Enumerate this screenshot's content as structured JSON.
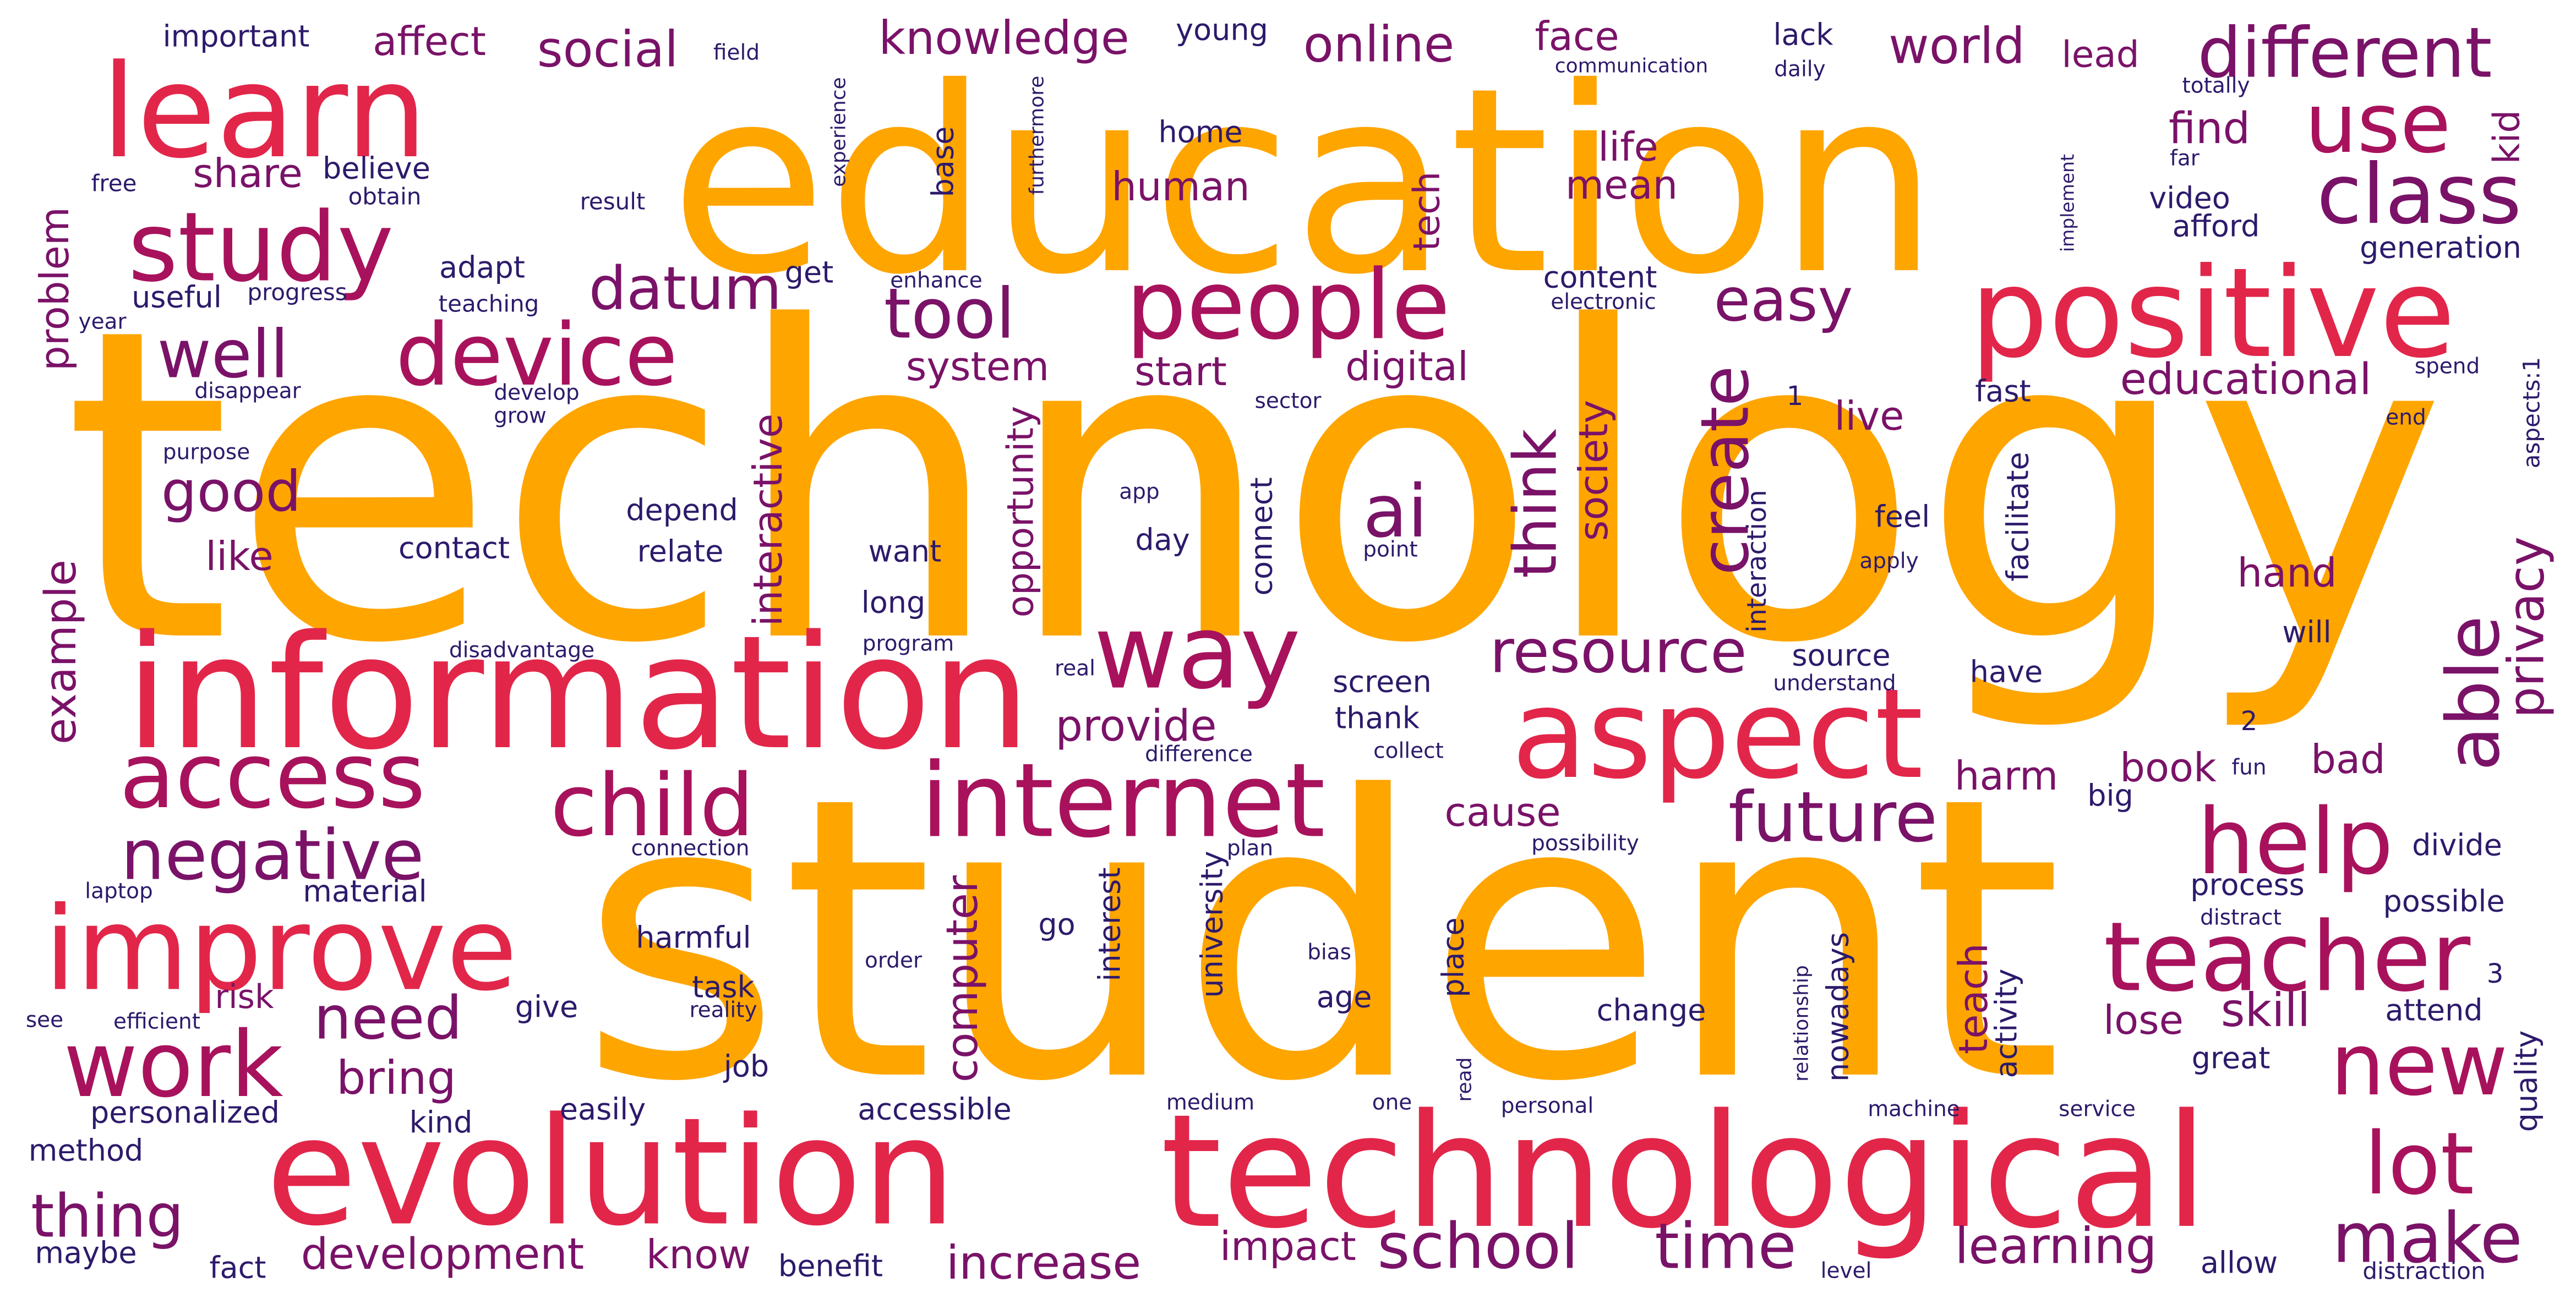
{
  "palette": {
    "orange": "#FFA500",
    "crimson": "#E2264A",
    "magenta": "#A8125C",
    "purple": "#7A1268",
    "indigo": "#2D1A6B"
  },
  "words": [
    {
      "text": "technology",
      "color": "orange"
    },
    {
      "text": "student",
      "color": "orange"
    },
    {
      "text": "education",
      "color": "orange"
    },
    {
      "text": "technological",
      "color": "crimson"
    },
    {
      "text": "information",
      "color": "crimson"
    },
    {
      "text": "evolution",
      "color": "crimson"
    },
    {
      "text": "positive",
      "color": "crimson"
    },
    {
      "text": "aspect",
      "color": "crimson"
    },
    {
      "text": "learn",
      "color": "crimson"
    },
    {
      "text": "improve",
      "color": "crimson"
    },
    {
      "text": "internet",
      "color": "magenta"
    },
    {
      "text": "people",
      "color": "magenta"
    },
    {
      "text": "teacher",
      "color": "magenta"
    },
    {
      "text": "access",
      "color": "magenta"
    },
    {
      "text": "study",
      "color": "magenta"
    },
    {
      "text": "device",
      "color": "magenta"
    },
    {
      "text": "child",
      "color": "magenta"
    },
    {
      "text": "way",
      "color": "magenta"
    },
    {
      "text": "help",
      "color": "magenta"
    },
    {
      "text": "work",
      "color": "magenta"
    },
    {
      "text": "different",
      "color": "purple"
    },
    {
      "text": "class",
      "color": "purple"
    },
    {
      "text": "use",
      "color": "magenta"
    },
    {
      "text": "new",
      "color": "magenta"
    },
    {
      "text": "lot",
      "color": "magenta"
    },
    {
      "text": "negative",
      "color": "purple"
    },
    {
      "text": "future",
      "color": "purple"
    },
    {
      "text": "make",
      "color": "purple"
    },
    {
      "text": "tool",
      "color": "purple"
    },
    {
      "text": "well",
      "color": "purple"
    },
    {
      "text": "ai",
      "color": "purple"
    },
    {
      "text": "able",
      "color": "purple"
    },
    {
      "text": "school",
      "color": "purple"
    },
    {
      "text": "time",
      "color": "purple"
    },
    {
      "text": "need",
      "color": "purple"
    },
    {
      "text": "thing",
      "color": "purple"
    },
    {
      "text": "resource",
      "color": "purple"
    },
    {
      "text": "easy",
      "color": "purple"
    },
    {
      "text": "datum",
      "color": "purple"
    },
    {
      "text": "create",
      "color": "purple"
    },
    {
      "text": "think",
      "color": "purple"
    },
    {
      "text": "good",
      "color": "purple"
    },
    {
      "text": "knowledge",
      "color": "purple"
    },
    {
      "text": "online",
      "color": "purple"
    },
    {
      "text": "social",
      "color": "purple"
    },
    {
      "text": "world",
      "color": "purple"
    },
    {
      "text": "privacy",
      "color": "purple"
    },
    {
      "text": "learning",
      "color": "purple"
    },
    {
      "text": "increase",
      "color": "purple"
    },
    {
      "text": "bring",
      "color": "purple"
    },
    {
      "text": "development",
      "color": "purple"
    },
    {
      "text": "educational",
      "color": "purple"
    },
    {
      "text": "provide",
      "color": "purple"
    },
    {
      "text": "computer",
      "color": "purple"
    },
    {
      "text": "example",
      "color": "purple"
    },
    {
      "text": "interactive",
      "color": "purple"
    },
    {
      "text": "society",
      "color": "purple"
    },
    {
      "text": "digital",
      "color": "purple"
    },
    {
      "text": "face",
      "color": "purple"
    },
    {
      "text": "affect",
      "color": "purple"
    },
    {
      "text": "problem",
      "color": "purple"
    },
    {
      "text": "human",
      "color": "purple"
    },
    {
      "text": "find",
      "color": "purple"
    },
    {
      "text": "life",
      "color": "purple"
    },
    {
      "text": "mean",
      "color": "purple"
    },
    {
      "text": "system",
      "color": "purple"
    },
    {
      "text": "start",
      "color": "purple"
    },
    {
      "text": "opportunity",
      "color": "purple"
    },
    {
      "text": "harm",
      "color": "purple"
    },
    {
      "text": "bad",
      "color": "purple"
    },
    {
      "text": "book",
      "color": "purple"
    },
    {
      "text": "hand",
      "color": "purple"
    },
    {
      "text": "share",
      "color": "purple"
    },
    {
      "text": "like",
      "color": "purple"
    },
    {
      "text": "live",
      "color": "purple"
    },
    {
      "text": "lose",
      "color": "purple"
    },
    {
      "text": "skill",
      "color": "purple"
    },
    {
      "text": "teach",
      "color": "purple"
    },
    {
      "text": "impact",
      "color": "purple"
    },
    {
      "text": "know",
      "color": "purple"
    },
    {
      "text": "cause",
      "color": "purple"
    },
    {
      "text": "kid",
      "color": "purple"
    },
    {
      "text": "lead",
      "color": "purple"
    },
    {
      "text": "tech",
      "color": "purple"
    },
    {
      "text": "risk",
      "color": "purple"
    },
    {
      "text": "important",
      "color": "indigo"
    },
    {
      "text": "young",
      "color": "indigo"
    },
    {
      "text": "lack",
      "color": "indigo"
    },
    {
      "text": "field",
      "color": "indigo"
    },
    {
      "text": "communication",
      "color": "indigo"
    },
    {
      "text": "daily",
      "color": "indigo"
    },
    {
      "text": "totally",
      "color": "indigo"
    },
    {
      "text": "far",
      "color": "indigo"
    },
    {
      "text": "home",
      "color": "indigo"
    },
    {
      "text": "base",
      "color": "indigo"
    },
    {
      "text": "experience",
      "color": "indigo"
    },
    {
      "text": "free",
      "color": "indigo"
    },
    {
      "text": "believe",
      "color": "indigo"
    },
    {
      "text": "obtain",
      "color": "indigo"
    },
    {
      "text": "result",
      "color": "indigo"
    },
    {
      "text": "furthermore",
      "color": "indigo"
    },
    {
      "text": "implement",
      "color": "indigo"
    },
    {
      "text": "video",
      "color": "indigo"
    },
    {
      "text": "afford",
      "color": "indigo"
    },
    {
      "text": "adapt",
      "color": "indigo"
    },
    {
      "text": "get",
      "color": "indigo"
    },
    {
      "text": "enhance",
      "color": "indigo"
    },
    {
      "text": "content",
      "color": "indigo"
    },
    {
      "text": "electronic",
      "color": "indigo"
    },
    {
      "text": "generation",
      "color": "indigo"
    },
    {
      "text": "useful",
      "color": "indigo"
    },
    {
      "text": "progress",
      "color": "indigo"
    },
    {
      "text": "teaching",
      "color": "indigo"
    },
    {
      "text": "year",
      "color": "indigo"
    },
    {
      "text": "disappear",
      "color": "indigo"
    },
    {
      "text": "develop",
      "color": "indigo"
    },
    {
      "text": "grow",
      "color": "indigo"
    },
    {
      "text": "sector",
      "color": "indigo"
    },
    {
      "text": "1",
      "color": "indigo"
    },
    {
      "text": "fast",
      "color": "indigo"
    },
    {
      "text": "spend",
      "color": "indigo"
    },
    {
      "text": "end",
      "color": "indigo"
    },
    {
      "text": "aspects:1",
      "color": "indigo"
    },
    {
      "text": "purpose",
      "color": "indigo"
    },
    {
      "text": "app",
      "color": "indigo"
    },
    {
      "text": "contact",
      "color": "indigo"
    },
    {
      "text": "depend",
      "color": "indigo"
    },
    {
      "text": "relate",
      "color": "indigo"
    },
    {
      "text": "want",
      "color": "indigo"
    },
    {
      "text": "day",
      "color": "indigo"
    },
    {
      "text": "connect",
      "color": "indigo"
    },
    {
      "text": "point",
      "color": "indigo"
    },
    {
      "text": "feel",
      "color": "indigo"
    },
    {
      "text": "apply",
      "color": "indigo"
    },
    {
      "text": "interaction",
      "color": "indigo"
    },
    {
      "text": "facilitate",
      "color": "indigo"
    },
    {
      "text": "long",
      "color": "indigo"
    },
    {
      "text": "disadvantage",
      "color": "indigo"
    },
    {
      "text": "program",
      "color": "indigo"
    },
    {
      "text": "real",
      "color": "indigo"
    },
    {
      "text": "screen",
      "color": "indigo"
    },
    {
      "text": "thank",
      "color": "indigo"
    },
    {
      "text": "source",
      "color": "indigo"
    },
    {
      "text": "understand",
      "color": "indigo"
    },
    {
      "text": "have",
      "color": "indigo"
    },
    {
      "text": "will",
      "color": "indigo"
    },
    {
      "text": "2",
      "color": "indigo"
    },
    {
      "text": "difference",
      "color": "indigo"
    },
    {
      "text": "collect",
      "color": "indigo"
    },
    {
      "text": "fun",
      "color": "indigo"
    },
    {
      "text": "big",
      "color": "indigo"
    },
    {
      "text": "connection",
      "color": "indigo"
    },
    {
      "text": "plan",
      "color": "indigo"
    },
    {
      "text": "possibility",
      "color": "indigo"
    },
    {
      "text": "divide",
      "color": "indigo"
    },
    {
      "text": "laptop",
      "color": "indigo"
    },
    {
      "text": "material",
      "color": "indigo"
    },
    {
      "text": "process",
      "color": "indigo"
    },
    {
      "text": "distract",
      "color": "indigo"
    },
    {
      "text": "possible",
      "color": "indigo"
    },
    {
      "text": "harmful",
      "color": "indigo"
    },
    {
      "text": "go",
      "color": "indigo"
    },
    {
      "text": "order",
      "color": "indigo"
    },
    {
      "text": "bias",
      "color": "indigo"
    },
    {
      "text": "university",
      "color": "indigo"
    },
    {
      "text": "interest",
      "color": "indigo"
    },
    {
      "text": "place",
      "color": "indigo"
    },
    {
      "text": "nowadays",
      "color": "indigo"
    },
    {
      "text": "relationship",
      "color": "indigo"
    },
    {
      "text": "activity",
      "color": "indigo"
    },
    {
      "text": "3",
      "color": "indigo"
    },
    {
      "text": "attend",
      "color": "indigo"
    },
    {
      "text": "see",
      "color": "indigo"
    },
    {
      "text": "efficient",
      "color": "indigo"
    },
    {
      "text": "task",
      "color": "indigo"
    },
    {
      "text": "reality",
      "color": "indigo"
    },
    {
      "text": "give",
      "color": "indigo"
    },
    {
      "text": "age",
      "color": "indigo"
    },
    {
      "text": "change",
      "color": "indigo"
    },
    {
      "text": "great",
      "color": "indigo"
    },
    {
      "text": "quality",
      "color": "indigo"
    },
    {
      "text": "job",
      "color": "indigo"
    },
    {
      "text": "read",
      "color": "indigo"
    },
    {
      "text": "personalized",
      "color": "indigo"
    },
    {
      "text": "easily",
      "color": "indigo"
    },
    {
      "text": "accessible",
      "color": "indigo"
    },
    {
      "text": "medium",
      "color": "indigo"
    },
    {
      "text": "one",
      "color": "indigo"
    },
    {
      "text": "personal",
      "color": "indigo"
    },
    {
      "text": "machine",
      "color": "indigo"
    },
    {
      "text": "service",
      "color": "indigo"
    },
    {
      "text": "kind",
      "color": "indigo"
    },
    {
      "text": "method",
      "color": "indigo"
    },
    {
      "text": "maybe",
      "color": "indigo"
    },
    {
      "text": "fact",
      "color": "indigo"
    },
    {
      "text": "benefit",
      "color": "indigo"
    },
    {
      "text": "level",
      "color": "indigo"
    },
    {
      "text": "allow",
      "color": "indigo"
    },
    {
      "text": "distraction",
      "color": "indigo"
    }
  ]
}
